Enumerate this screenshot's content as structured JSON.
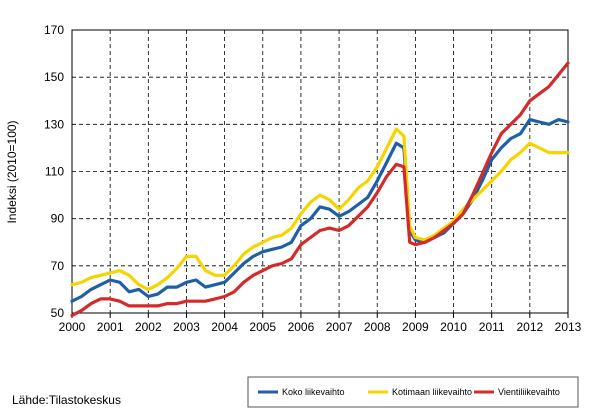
{
  "chart_data": {
    "type": "line",
    "ylabel": "Indeksi (2010=100)",
    "ylim": [
      50,
      170
    ],
    "yticks": [
      50,
      70,
      90,
      110,
      130,
      150,
      170
    ],
    "xlim": [
      2000,
      2013
    ],
    "xticks": [
      2000,
      2001,
      2002,
      2003,
      2004,
      2005,
      2006,
      2007,
      2008,
      2009,
      2010,
      2011,
      2012,
      2013
    ],
    "grid": "dashed vertical and horizontal",
    "legend_position": "bottom-right",
    "source": "Lähde:Tilastokeskus",
    "series": [
      {
        "name": "Koko liikevaihto",
        "color": "#1f5fa8",
        "x": [
          2000,
          2000.25,
          2000.5,
          2000.75,
          2001,
          2001.25,
          2001.5,
          2001.75,
          2002,
          2002.25,
          2002.5,
          2002.75,
          2003,
          2003.25,
          2003.5,
          2003.75,
          2004,
          2004.25,
          2004.5,
          2004.75,
          2005,
          2005.25,
          2005.5,
          2005.75,
          2006,
          2006.25,
          2006.5,
          2006.75,
          2007,
          2007.25,
          2007.5,
          2007.75,
          2008,
          2008.25,
          2008.5,
          2008.7,
          2008.85,
          2009,
          2009.25,
          2009.5,
          2009.75,
          2010,
          2010.25,
          2010.5,
          2010.75,
          2011,
          2011.25,
          2011.5,
          2011.75,
          2012,
          2012.25,
          2012.5,
          2012.75,
          2013
        ],
        "values": [
          55,
          57,
          60,
          62,
          64,
          63,
          59,
          60,
          57,
          58,
          61,
          61,
          63,
          64,
          61,
          62,
          63,
          67,
          71,
          74,
          76,
          77,
          78,
          80,
          87,
          90,
          95,
          94,
          91,
          93,
          96,
          99,
          106,
          114,
          122,
          120,
          85,
          81,
          80,
          82,
          84,
          88,
          92,
          98,
          106,
          115,
          120,
          124,
          126,
          132,
          131,
          130,
          132,
          131
        ]
      },
      {
        "name": "Kotimaan liikevaihto",
        "color": "#f5d400",
        "x": [
          2000,
          2000.25,
          2000.5,
          2000.75,
          2001,
          2001.25,
          2001.5,
          2001.75,
          2002,
          2002.25,
          2002.5,
          2002.75,
          2003,
          2003.25,
          2003.5,
          2003.75,
          2004,
          2004.25,
          2004.5,
          2004.75,
          2005,
          2005.25,
          2005.5,
          2005.75,
          2006,
          2006.25,
          2006.5,
          2006.75,
          2007,
          2007.25,
          2007.5,
          2007.75,
          2008,
          2008.25,
          2008.5,
          2008.7,
          2008.85,
          2009,
          2009.25,
          2009.5,
          2009.75,
          2010,
          2010.25,
          2010.5,
          2010.75,
          2011,
          2011.25,
          2011.5,
          2011.75,
          2012,
          2012.25,
          2012.5,
          2012.75,
          2013
        ],
        "values": [
          62,
          63,
          65,
          66,
          67,
          68,
          66,
          62,
          60,
          62,
          65,
          69,
          74,
          74,
          68,
          66,
          66,
          70,
          75,
          78,
          80,
          82,
          83,
          86,
          92,
          97,
          100,
          98,
          94,
          98,
          103,
          106,
          112,
          120,
          128,
          125,
          87,
          82,
          81,
          83,
          86,
          89,
          94,
          98,
          102,
          106,
          110,
          115,
          118,
          122,
          120,
          118,
          118,
          118
        ]
      },
      {
        "name": "Vientiliikevaihto",
        "color": "#d42a2a",
        "x": [
          2000,
          2000.25,
          2000.5,
          2000.75,
          2001,
          2001.25,
          2001.5,
          2001.75,
          2002,
          2002.25,
          2002.5,
          2002.75,
          2003,
          2003.25,
          2003.5,
          2003.75,
          2004,
          2004.25,
          2004.5,
          2004.75,
          2005,
          2005.25,
          2005.5,
          2005.75,
          2006,
          2006.25,
          2006.5,
          2006.75,
          2007,
          2007.25,
          2007.5,
          2007.75,
          2008,
          2008.25,
          2008.5,
          2008.7,
          2008.85,
          2009,
          2009.25,
          2009.5,
          2009.75,
          2010,
          2010.25,
          2010.5,
          2010.75,
          2011,
          2011.25,
          2011.5,
          2011.75,
          2012,
          2012.25,
          2012.5,
          2012.75,
          2013
        ],
        "values": [
          49,
          51,
          54,
          56,
          56,
          55,
          53,
          53,
          53,
          53,
          54,
          54,
          55,
          55,
          55,
          56,
          57,
          59,
          63,
          66,
          68,
          70,
          71,
          73,
          79,
          82,
          85,
          86,
          85,
          87,
          91,
          95,
          101,
          108,
          113,
          112,
          80,
          79,
          80,
          82,
          85,
          88,
          92,
          100,
          109,
          118,
          126,
          130,
          134,
          140,
          143,
          146,
          151,
          156
        ]
      }
    ]
  }
}
